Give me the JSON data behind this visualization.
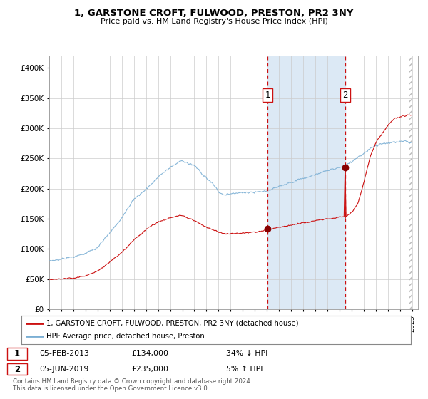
{
  "title": "1, GARSTONE CROFT, FULWOOD, PRESTON, PR2 3NY",
  "subtitle": "Price paid vs. HM Land Registry's House Price Index (HPI)",
  "legend_line1": "1, GARSTONE CROFT, FULWOOD, PRESTON, PR2 3NY (detached house)",
  "legend_line2": "HPI: Average price, detached house, Preston",
  "transaction1_date": "05-FEB-2013",
  "transaction1_price": "£134,000",
  "transaction1_hpi": "34% ↓ HPI",
  "transaction2_date": "05-JUN-2019",
  "transaction2_price": "£235,000",
  "transaction2_hpi": "5% ↑ HPI",
  "footer": "Contains HM Land Registry data © Crown copyright and database right 2024.\nThis data is licensed under the Open Government Licence v3.0.",
  "hpi_color": "#7bafd4",
  "property_color": "#cc1111",
  "highlight_color": "#dce9f5",
  "dot_color": "#880000",
  "ylim_max": 420000,
  "yticks": [
    0,
    50000,
    100000,
    150000,
    200000,
    250000,
    300000,
    350000,
    400000
  ],
  "transaction1_year": 2013.083,
  "transaction2_year": 2019.417,
  "transaction1_price_val": 134000,
  "transaction2_price_val": 235000
}
